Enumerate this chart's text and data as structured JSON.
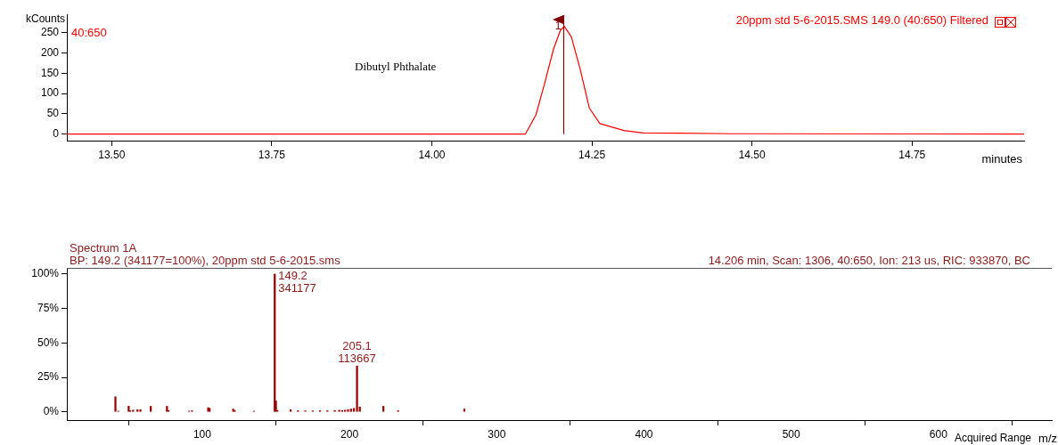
{
  "chart_data": [
    {
      "type": "line",
      "title": "20ppm std 5-6-2015.SMS 149.0 (40:650) Filtered",
      "xlabel": "minutes",
      "ylabel": "kCounts",
      "annotations": [
        "40:650",
        "Dibutyl Phthalate",
        {
          "text": "1",
          "x": 14.206,
          "y": 265
        }
      ],
      "x": [
        13.43,
        14.146,
        14.1625,
        14.176,
        14.19,
        14.201,
        14.207,
        14.218,
        14.232,
        14.246,
        14.2625,
        14.3,
        14.33,
        14.47,
        14.925
      ],
      "series": [
        {
          "color": "#ff0000",
          "values": [
            0,
            0,
            47,
            124,
            209,
            256,
            265,
            239,
            158,
            64,
            26,
            9,
            3,
            1,
            0
          ]
        }
      ],
      "xlim": [
        13.43,
        14.925
      ],
      "xticks": [
        {
          "value": 13.5,
          "label": "13.50"
        },
        {
          "value": 13.75,
          "label": "13.75"
        },
        {
          "value": 14,
          "label": "14.00"
        },
        {
          "value": 14.25,
          "label": "14.25"
        },
        {
          "value": 14.5,
          "label": "14.50"
        },
        {
          "value": 14.75,
          "label": "14.75"
        }
      ],
      "ylim": [
        -16,
        295
      ],
      "yticks": [
        0,
        50,
        100,
        150,
        200,
        250
      ],
      "ref_lines": [
        {
          "axis": "x",
          "value": 14.206,
          "color": "#800000"
        }
      ],
      "grid": false,
      "legend": false
    },
    {
      "type": "bar",
      "title": "Spectrum 1A",
      "subtitle": "BP: 149.2 (341177=100%), 20ppm std 5-6-2015.sms",
      "xlabel": "m/z",
      "annotations": [
        "14.206 min, Scan: 1306, 40:650, Ion: 213 us, RIC: 933870, BC",
        "Acquired Range",
        {
          "text": "149.2",
          "x": 149.2,
          "y": 100
        },
        {
          "text": "341177",
          "x": 149.2,
          "y": 100
        },
        {
          "text": "205.1",
          "x": 205.1,
          "y": 33.3
        },
        {
          "text": "113667",
          "x": 205.1,
          "y": 33.3
        }
      ],
      "x": [
        41,
        43,
        50,
        51,
        53,
        56,
        58,
        65,
        76,
        77,
        91,
        93,
        104,
        105,
        121,
        122,
        135,
        149.2,
        150,
        151,
        160,
        165,
        170,
        175,
        180,
        185,
        190,
        193,
        195,
        197,
        199,
        201,
        203,
        205.1,
        207,
        223,
        233,
        278
      ],
      "series": [
        {
          "color": "#990000",
          "values": [
            10.9,
            0.5,
            4.1,
            0.8,
            1.2,
            1.5,
            1.5,
            4,
            4,
            1,
            0.5,
            0.8,
            3,
            2.5,
            2,
            1,
            0.5,
            100,
            7.9,
            1,
            1.5,
            0.8,
            0.7,
            0.7,
            0.8,
            0.8,
            1,
            1.2,
            1,
            1.2,
            1.5,
            2,
            2.5,
            33.3,
            3.5,
            4,
            0.8,
            2
          ]
        }
      ],
      "xlim": [
        8,
        677
      ],
      "xticks": [
        100,
        200,
        300,
        400,
        500,
        600
      ],
      "ylim": [
        -6,
        104.5
      ],
      "yticks": [
        {
          "value": 0,
          "label": "0%"
        },
        {
          "value": 25,
          "label": "25%"
        },
        {
          "value": 50,
          "label": "50%"
        },
        {
          "value": 75,
          "label": "75%"
        },
        {
          "value": 100,
          "label": "100%"
        }
      ],
      "grid": false,
      "legend": false
    }
  ]
}
